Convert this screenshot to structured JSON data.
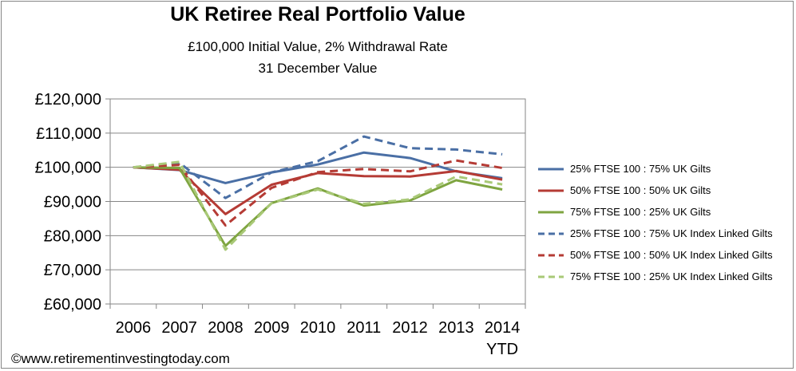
{
  "chart_data": {
    "type": "line",
    "title": "UK Retiree Real Portfolio Value",
    "subtitle_lines": [
      "£100,000 Initial Value, 2% Withdrawal Rate",
      "31 December  Value"
    ],
    "xlabel": "",
    "ylabel": "",
    "categories": [
      "2006",
      "2007",
      "2008",
      "2009",
      "2010",
      "2011",
      "2012",
      "2013",
      "2014"
    ],
    "category_sublabels": [
      "",
      "",
      "",
      "",
      "",
      "",
      "",
      "",
      "YTD"
    ],
    "ylim": [
      60000,
      120000
    ],
    "yticks": [
      60000,
      70000,
      80000,
      90000,
      100000,
      110000,
      120000
    ],
    "ytick_labels": [
      "£60,000",
      "£70,000",
      "£80,000",
      "£90,000",
      "£100,000",
      "£110,000",
      "£120,000"
    ],
    "grid": "horizontal",
    "legend_position": "right",
    "series": [
      {
        "name": "25% FTSE 100 : 75% UK Gilts",
        "color": "#4a6fa5",
        "dash": "solid",
        "values": [
          100000,
          99200,
          95400,
          98500,
          100800,
          104300,
          102700,
          98800,
          96800
        ]
      },
      {
        "name": "50% FTSE 100 : 50% UK Gilts",
        "color": "#b53b35",
        "dash": "solid",
        "values": [
          100000,
          99300,
          86300,
          94900,
          98300,
          97400,
          97300,
          98900,
          96400
        ]
      },
      {
        "name": "75% FTSE 100 : 25% UK Gilts",
        "color": "#7fa541",
        "dash": "solid",
        "values": [
          100000,
          99800,
          77000,
          89500,
          93800,
          88800,
          90300,
          96200,
          93500
        ]
      },
      {
        "name": "25% FTSE 100 : 75% UK Index Linked Gilts",
        "color": "#4a6fa5",
        "dash": "dashed",
        "values": [
          100000,
          101300,
          91000,
          98500,
          101800,
          109000,
          105600,
          105200,
          103800
        ]
      },
      {
        "name": "50% FTSE 100 : 50% UK Index Linked Gilts",
        "color": "#b53b35",
        "dash": "dashed",
        "values": [
          100000,
          100700,
          83000,
          94000,
          98600,
          99500,
          98800,
          102000,
          99800
        ]
      },
      {
        "name": "75% FTSE 100 : 25% UK Index Linked Gilts",
        "color": "#a9c977",
        "dash": "dashed",
        "values": [
          100000,
          101600,
          75900,
          89500,
          93500,
          89300,
          90600,
          97300,
          95000
        ]
      }
    ]
  },
  "footer": {
    "copyright": "©www.retirementinvestingtoday.com"
  }
}
